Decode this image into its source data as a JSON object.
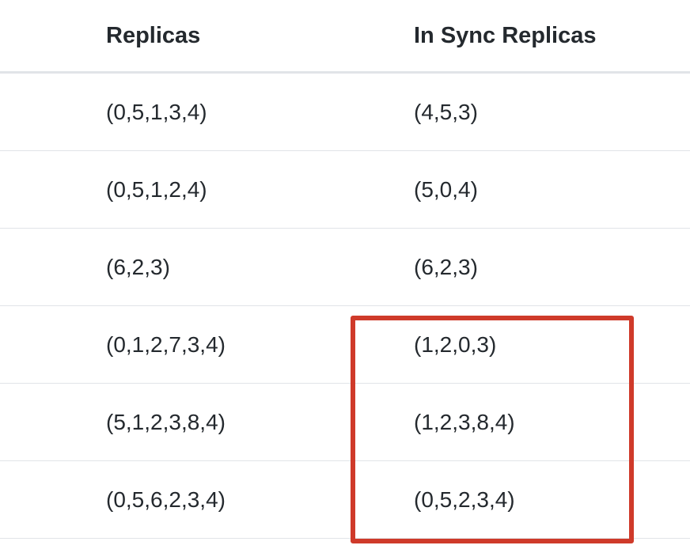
{
  "table": {
    "headers": [
      "Replicas",
      "In Sync Replicas"
    ],
    "rows": [
      [
        "(0,5,1,3,4)",
        "(4,5,3)"
      ],
      [
        "(0,5,1,2,4)",
        "(5,0,4)"
      ],
      [
        "(6,2,3)",
        "(6,2,3)"
      ],
      [
        "(0,1,2,7,3,4)",
        "(1,2,0,3)"
      ],
      [
        "(5,1,2,3,8,4)",
        "(1,2,3,8,4)"
      ],
      [
        "(0,5,6,2,3,4)",
        "(0,5,2,3,4)"
      ]
    ]
  },
  "highlight": {
    "color": "#cf3a2a",
    "covers_column": "In Sync Replicas",
    "covers_rows": [
      4,
      5,
      6
    ]
  }
}
